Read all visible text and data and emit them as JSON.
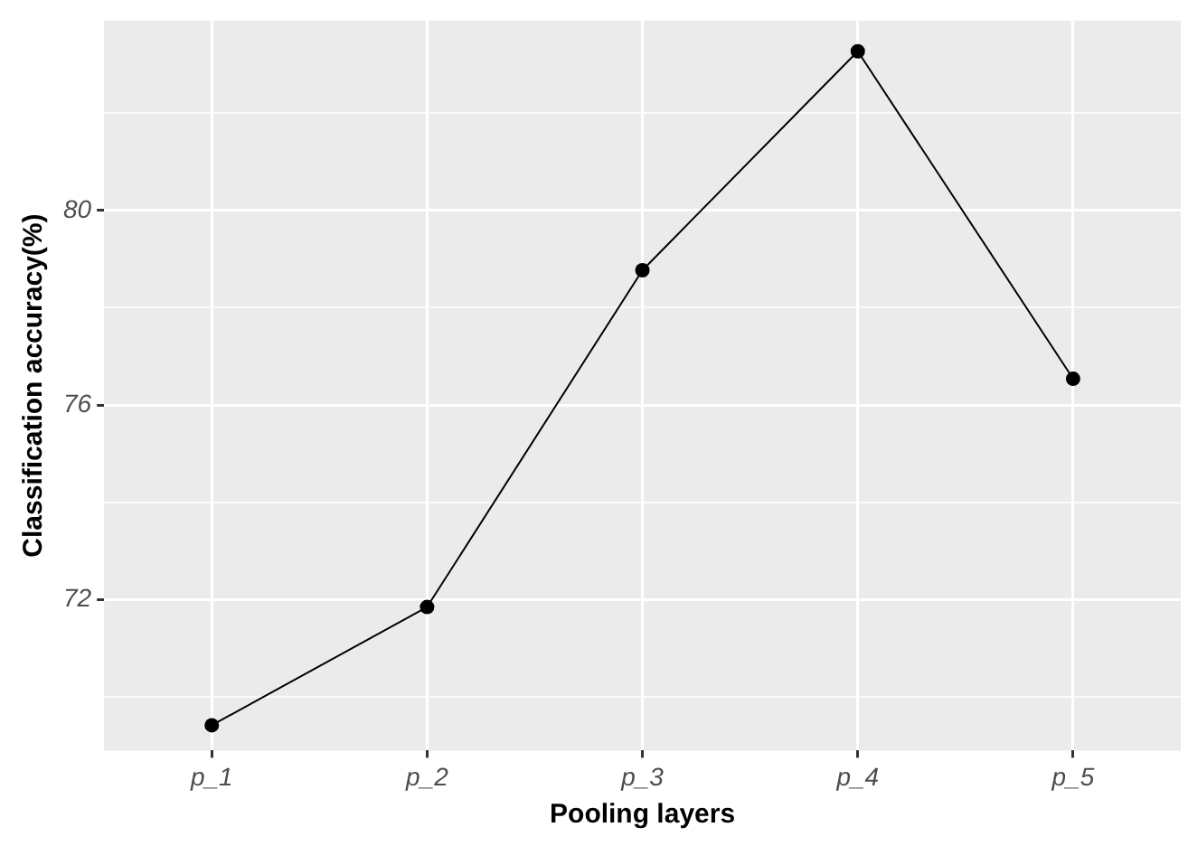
{
  "chart_data": {
    "type": "line",
    "xlabel": "Pooling layers",
    "ylabel": "Classification accuracy(%)",
    "categories": [
      "p_1",
      "p_2",
      "p_3",
      "p_4",
      "p_5"
    ],
    "series": [
      {
        "color": "#000000",
        "values": [
          69.42,
          71.85,
          78.77,
          83.27,
          76.54
        ]
      }
    ],
    "ylim": [
      68.9,
      83.9
    ],
    "yticks": [
      {
        "value": 70,
        "label": null
      },
      72,
      {
        "value": 74,
        "label": null
      },
      76,
      {
        "value": 78,
        "label": null
      },
      80,
      {
        "value": 82,
        "label": null
      }
    ],
    "grid": true,
    "legend": false,
    "marker": "circle",
    "line_style": "solid"
  }
}
